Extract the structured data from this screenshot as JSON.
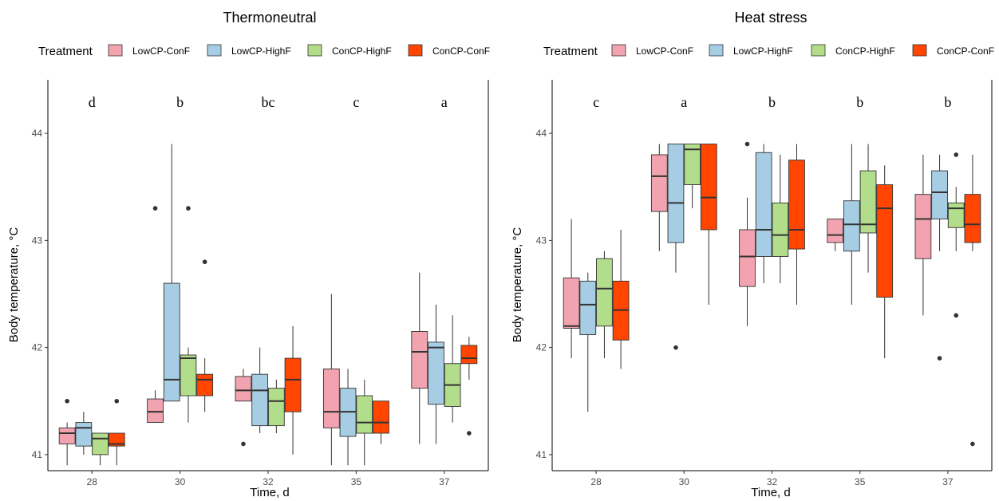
{
  "treatments": [
    {
      "name": "LowCP-ConF",
      "color": "#f1a3af"
    },
    {
      "name": "LowCP-HighF",
      "color": "#a6cde3"
    },
    {
      "name": "ConCP-HighF",
      "color": "#b2dd8a"
    },
    {
      "name": "ConCP-ConF",
      "color": "#ff4500"
    }
  ],
  "chart_data": [
    {
      "type": "box",
      "title": "Thermoneutral",
      "legend_title": "Treatment",
      "legend_position": "top",
      "xlabel": "Time, d",
      "ylabel": "Body temperature, °C",
      "categories": [
        "28",
        "30",
        "32",
        "35",
        "37"
      ],
      "yticks": [
        41,
        42,
        43,
        44
      ],
      "ylim": [
        40.85,
        44.5
      ],
      "letters": [
        "d",
        "b",
        "bc",
        "c",
        "a"
      ],
      "series": [
        {
          "name": "LowCP-ConF",
          "boxes": [
            {
              "q1": 41.1,
              "median": 41.2,
              "q3": 41.25,
              "whisker_low": 40.9,
              "whisker_high": 41.3,
              "outliers": [
                41.5
              ]
            },
            {
              "q1": 41.3,
              "median": 41.4,
              "q3": 41.52,
              "whisker_low": 41.3,
              "whisker_high": 41.6,
              "outliers": [
                43.3
              ]
            },
            {
              "q1": 41.5,
              "median": 41.6,
              "q3": 41.73,
              "whisker_low": 41.5,
              "whisker_high": 41.8,
              "outliers": [
                41.1
              ]
            },
            {
              "q1": 41.25,
              "median": 41.4,
              "q3": 41.8,
              "whisker_low": 40.9,
              "whisker_high": 42.5,
              "outliers": []
            },
            {
              "q1": 41.62,
              "median": 41.96,
              "q3": 42.15,
              "whisker_low": 41.1,
              "whisker_high": 42.7,
              "outliers": []
            }
          ]
        },
        {
          "name": "LowCP-HighF",
          "boxes": [
            {
              "q1": 41.08,
              "median": 41.25,
              "q3": 41.3,
              "whisker_low": 41.0,
              "whisker_high": 41.4,
              "outliers": []
            },
            {
              "q1": 41.5,
              "median": 41.7,
              "q3": 42.6,
              "whisker_low": 41.5,
              "whisker_high": 43.9,
              "outliers": []
            },
            {
              "q1": 41.27,
              "median": 41.6,
              "q3": 41.75,
              "whisker_low": 41.2,
              "whisker_high": 42.0,
              "outliers": []
            },
            {
              "q1": 41.17,
              "median": 41.4,
              "q3": 41.62,
              "whisker_low": 40.9,
              "whisker_high": 41.8,
              "outliers": []
            },
            {
              "q1": 41.47,
              "median": 42.0,
              "q3": 42.05,
              "whisker_low": 41.1,
              "whisker_high": 42.4,
              "outliers": []
            }
          ]
        },
        {
          "name": "ConCP-HighF",
          "boxes": [
            {
              "q1": 41.0,
              "median": 41.15,
              "q3": 41.2,
              "whisker_low": 40.9,
              "whisker_high": 41.2,
              "outliers": []
            },
            {
              "q1": 41.55,
              "median": 41.9,
              "q3": 41.93,
              "whisker_low": 41.3,
              "whisker_high": 42.0,
              "outliers": [
                43.3
              ]
            },
            {
              "q1": 41.27,
              "median": 41.5,
              "q3": 41.62,
              "whisker_low": 41.2,
              "whisker_high": 41.7,
              "outliers": []
            },
            {
              "q1": 41.2,
              "median": 41.3,
              "q3": 41.55,
              "whisker_low": 40.9,
              "whisker_high": 41.7,
              "outliers": []
            },
            {
              "q1": 41.45,
              "median": 41.65,
              "q3": 41.85,
              "whisker_low": 41.3,
              "whisker_high": 42.3,
              "outliers": []
            }
          ]
        },
        {
          "name": "ConCP-ConF",
          "boxes": [
            {
              "q1": 41.08,
              "median": 41.1,
              "q3": 41.2,
              "whisker_low": 40.9,
              "whisker_high": 41.2,
              "outliers": [
                41.5
              ]
            },
            {
              "q1": 41.55,
              "median": 41.7,
              "q3": 41.75,
              "whisker_low": 41.4,
              "whisker_high": 41.9,
              "outliers": [
                42.8
              ]
            },
            {
              "q1": 41.4,
              "median": 41.7,
              "q3": 41.9,
              "whisker_low": 41.0,
              "whisker_high": 42.2,
              "outliers": []
            },
            {
              "q1": 41.2,
              "median": 41.3,
              "q3": 41.5,
              "whisker_low": 41.1,
              "whisker_high": 41.5,
              "outliers": []
            },
            {
              "q1": 41.85,
              "median": 41.9,
              "q3": 42.02,
              "whisker_low": 41.7,
              "whisker_high": 42.1,
              "outliers": [
                41.2
              ]
            }
          ]
        }
      ]
    },
    {
      "type": "box",
      "title": "Heat stress",
      "legend_title": "Treatment",
      "legend_position": "top",
      "xlabel": "Time, d",
      "ylabel": "Body temperature, °C",
      "categories": [
        "28",
        "30",
        "32",
        "35",
        "37"
      ],
      "yticks": [
        41,
        42,
        43,
        44
      ],
      "ylim": [
        40.85,
        44.5
      ],
      "letters": [
        "c",
        "a",
        "b",
        "b",
        "b"
      ],
      "series": [
        {
          "name": "LowCP-ConF",
          "boxes": [
            {
              "q1": 42.18,
              "median": 42.2,
              "q3": 42.65,
              "whisker_low": 41.9,
              "whisker_high": 43.2,
              "outliers": []
            },
            {
              "q1": 43.27,
              "median": 43.6,
              "q3": 43.8,
              "whisker_low": 42.9,
              "whisker_high": 43.9,
              "outliers": []
            },
            {
              "q1": 42.57,
              "median": 42.85,
              "q3": 43.1,
              "whisker_low": 42.2,
              "whisker_high": 43.4,
              "outliers": [
                43.9
              ]
            },
            {
              "q1": 42.98,
              "median": 43.05,
              "q3": 43.2,
              "whisker_low": 42.9,
              "whisker_high": 43.2,
              "outliers": []
            },
            {
              "q1": 42.83,
              "median": 43.2,
              "q3": 43.43,
              "whisker_low": 42.3,
              "whisker_high": 43.8,
              "outliers": []
            }
          ]
        },
        {
          "name": "LowCP-HighF",
          "boxes": [
            {
              "q1": 42.12,
              "median": 42.4,
              "q3": 42.62,
              "whisker_low": 41.4,
              "whisker_high": 42.7,
              "outliers": []
            },
            {
              "q1": 42.98,
              "median": 43.35,
              "q3": 43.9,
              "whisker_low": 42.7,
              "whisker_high": 43.9,
              "outliers": [
                42.0
              ]
            },
            {
              "q1": 42.85,
              "median": 43.1,
              "q3": 43.82,
              "whisker_low": 42.6,
              "whisker_high": 43.9,
              "outliers": []
            },
            {
              "q1": 42.9,
              "median": 43.15,
              "q3": 43.37,
              "whisker_low": 42.4,
              "whisker_high": 43.9,
              "outliers": []
            },
            {
              "q1": 43.2,
              "median": 43.45,
              "q3": 43.65,
              "whisker_low": 42.9,
              "whisker_high": 43.8,
              "outliers": [
                41.9
              ]
            }
          ]
        },
        {
          "name": "ConCP-HighF",
          "boxes": [
            {
              "q1": 42.2,
              "median": 42.55,
              "q3": 42.83,
              "whisker_low": 41.9,
              "whisker_high": 42.9,
              "outliers": []
            },
            {
              "q1": 43.52,
              "median": 43.85,
              "q3": 43.9,
              "whisker_low": 43.3,
              "whisker_high": 43.9,
              "outliers": []
            },
            {
              "q1": 42.85,
              "median": 43.05,
              "q3": 43.35,
              "whisker_low": 42.6,
              "whisker_high": 43.8,
              "outliers": []
            },
            {
              "q1": 43.07,
              "median": 43.15,
              "q3": 43.65,
              "whisker_low": 42.7,
              "whisker_high": 43.9,
              "outliers": []
            },
            {
              "q1": 43.12,
              "median": 43.3,
              "q3": 43.35,
              "whisker_low": 42.9,
              "whisker_high": 43.5,
              "outliers": [
                43.8,
                42.3
              ]
            }
          ]
        },
        {
          "name": "ConCP-ConF",
          "boxes": [
            {
              "q1": 42.07,
              "median": 42.35,
              "q3": 42.62,
              "whisker_low": 41.8,
              "whisker_high": 43.1,
              "outliers": []
            },
            {
              "q1": 43.1,
              "median": 43.4,
              "q3": 43.9,
              "whisker_low": 42.4,
              "whisker_high": 43.9,
              "outliers": []
            },
            {
              "q1": 42.92,
              "median": 43.1,
              "q3": 43.75,
              "whisker_low": 42.4,
              "whisker_high": 43.9,
              "outliers": []
            },
            {
              "q1": 42.47,
              "median": 43.3,
              "q3": 43.52,
              "whisker_low": 41.9,
              "whisker_high": 43.7,
              "outliers": []
            },
            {
              "q1": 42.98,
              "median": 43.15,
              "q3": 43.43,
              "whisker_low": 42.9,
              "whisker_high": 43.8,
              "outliers": [
                41.1
              ]
            }
          ]
        }
      ]
    }
  ]
}
